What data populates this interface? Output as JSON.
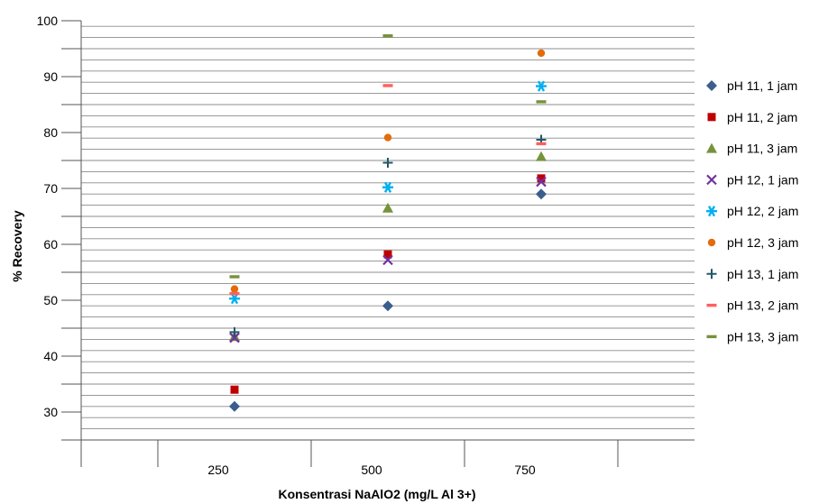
{
  "chart_data": {
    "type": "scatter",
    "title": "",
    "xlabel": "Konsentrasi NaAlO2 (mg/L Al 3+)",
    "ylabel": "% Recovery",
    "x_ticks": [
      "250",
      "500",
      "750"
    ],
    "y_ticks": [
      30,
      40,
      50,
      60,
      70,
      80,
      90,
      100
    ],
    "ylim": [
      25,
      100
    ],
    "grid": true,
    "legend_position": "right",
    "series": [
      {
        "name": "pH 11, 1 jam",
        "color": "#3B5E8C",
        "marker": "diamond",
        "x": [
          250,
          500,
          750
        ],
        "y": [
          31,
          49,
          69
        ]
      },
      {
        "name": "pH 11, 2 jam",
        "color": "#C00000",
        "marker": "square",
        "x": [
          250,
          500,
          750
        ],
        "y": [
          34,
          58.2,
          71.8
        ]
      },
      {
        "name": "pH 11, 3 jam",
        "color": "#76923C",
        "marker": "triangle",
        "x": [
          250,
          500,
          750
        ],
        "y": [
          43.5,
          66.5,
          75.7
        ]
      },
      {
        "name": "pH 12, 1 jam",
        "color": "#7030A0",
        "marker": "x",
        "x": [
          250,
          500,
          750
        ],
        "y": [
          43.3,
          57.2,
          71.2
        ]
      },
      {
        "name": "pH 12, 2 jam",
        "color": "#00B0F0",
        "marker": "asterisk",
        "x": [
          250,
          500,
          750
        ],
        "y": [
          50.3,
          70.2,
          88.3
        ]
      },
      {
        "name": "pH 12, 3 jam",
        "color": "#E36C0A",
        "marker": "circle",
        "x": [
          250,
          500,
          750
        ],
        "y": [
          52,
          79.1,
          94.2
        ]
      },
      {
        "name": "pH 13, 1 jam",
        "color": "#215868",
        "marker": "plus",
        "x": [
          250,
          500,
          750
        ],
        "y": [
          44.3,
          74.6,
          78.7
        ]
      },
      {
        "name": "pH 13, 2 jam",
        "color": "#FF5F5F",
        "marker": "dash",
        "x": [
          250,
          500,
          750
        ],
        "y": [
          51.2,
          88.4,
          78
        ]
      },
      {
        "name": "pH 13, 3 jam",
        "color": "#76923C",
        "marker": "dash",
        "x": [
          250,
          500,
          750
        ],
        "y": [
          54.2,
          97.3,
          85.5
        ]
      }
    ]
  }
}
